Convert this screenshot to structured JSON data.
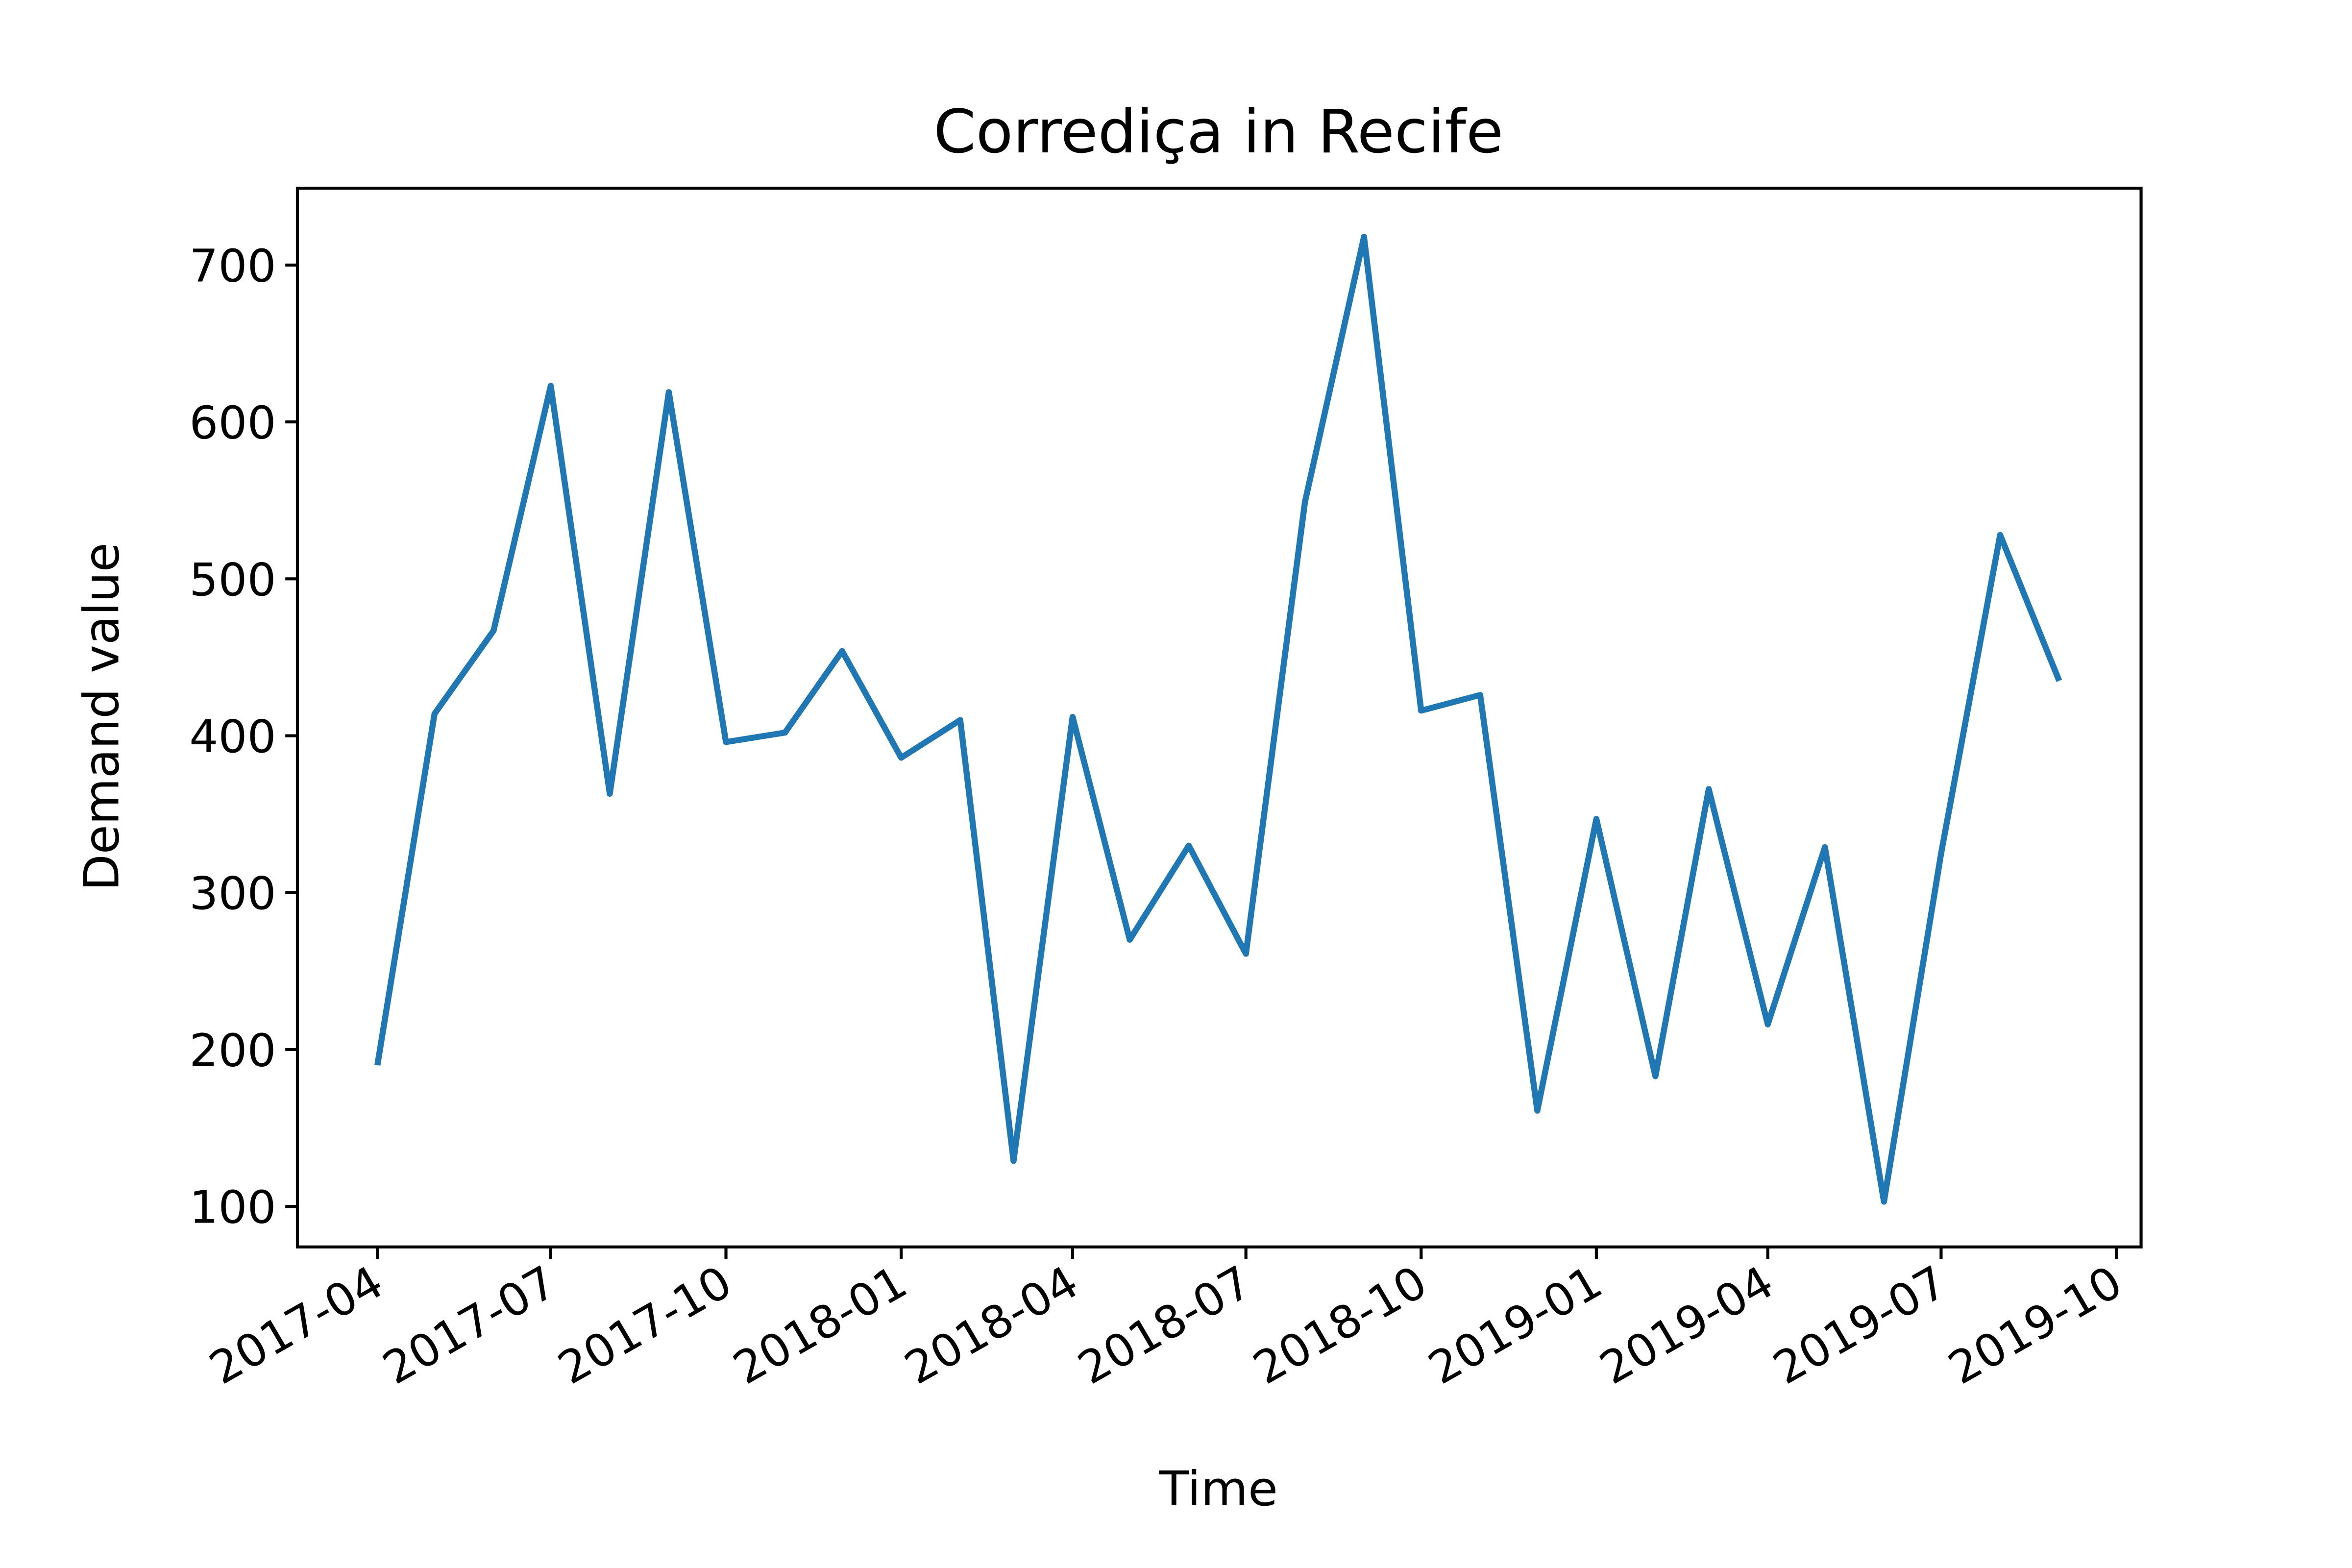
{
  "chart_data": {
    "type": "line",
    "title": "Corrediça in Recife",
    "xlabel": "Time",
    "ylabel": "Demand value",
    "x": [
      "2017-04",
      "2017-05",
      "2017-06",
      "2017-07",
      "2017-08",
      "2017-09",
      "2017-10",
      "2017-11",
      "2017-12",
      "2018-01",
      "2018-02",
      "2018-03",
      "2018-04",
      "2018-05",
      "2018-06",
      "2018-07",
      "2018-08",
      "2018-09",
      "2018-10",
      "2018-11",
      "2018-12",
      "2019-01",
      "2019-02",
      "2019-03",
      "2019-04",
      "2019-05",
      "2019-06",
      "2019-07",
      "2019-08",
      "2019-09"
    ],
    "series": [
      {
        "values": [
          190,
          414,
          467,
          623,
          363,
          619,
          396,
          402,
          454,
          386,
          410,
          129,
          412,
          270,
          330,
          261,
          549,
          718,
          416,
          426,
          161,
          347,
          183,
          366,
          216,
          329,
          103,
          325,
          528,
          435
        ],
        "color": "#1f77b4"
      }
    ],
    "xlim": [
      "2017-02-18",
      "2019-10-14"
    ],
    "ylim": [
      74.2,
      749
    ],
    "x_ticks": [
      "2017-04",
      "2017-07",
      "2017-10",
      "2018-01",
      "2018-04",
      "2018-07",
      "2018-10",
      "2019-01",
      "2019-04",
      "2019-07",
      "2019-10"
    ],
    "y_ticks": [
      100,
      200,
      300,
      400,
      500,
      600,
      700
    ],
    "grid": false
  }
}
